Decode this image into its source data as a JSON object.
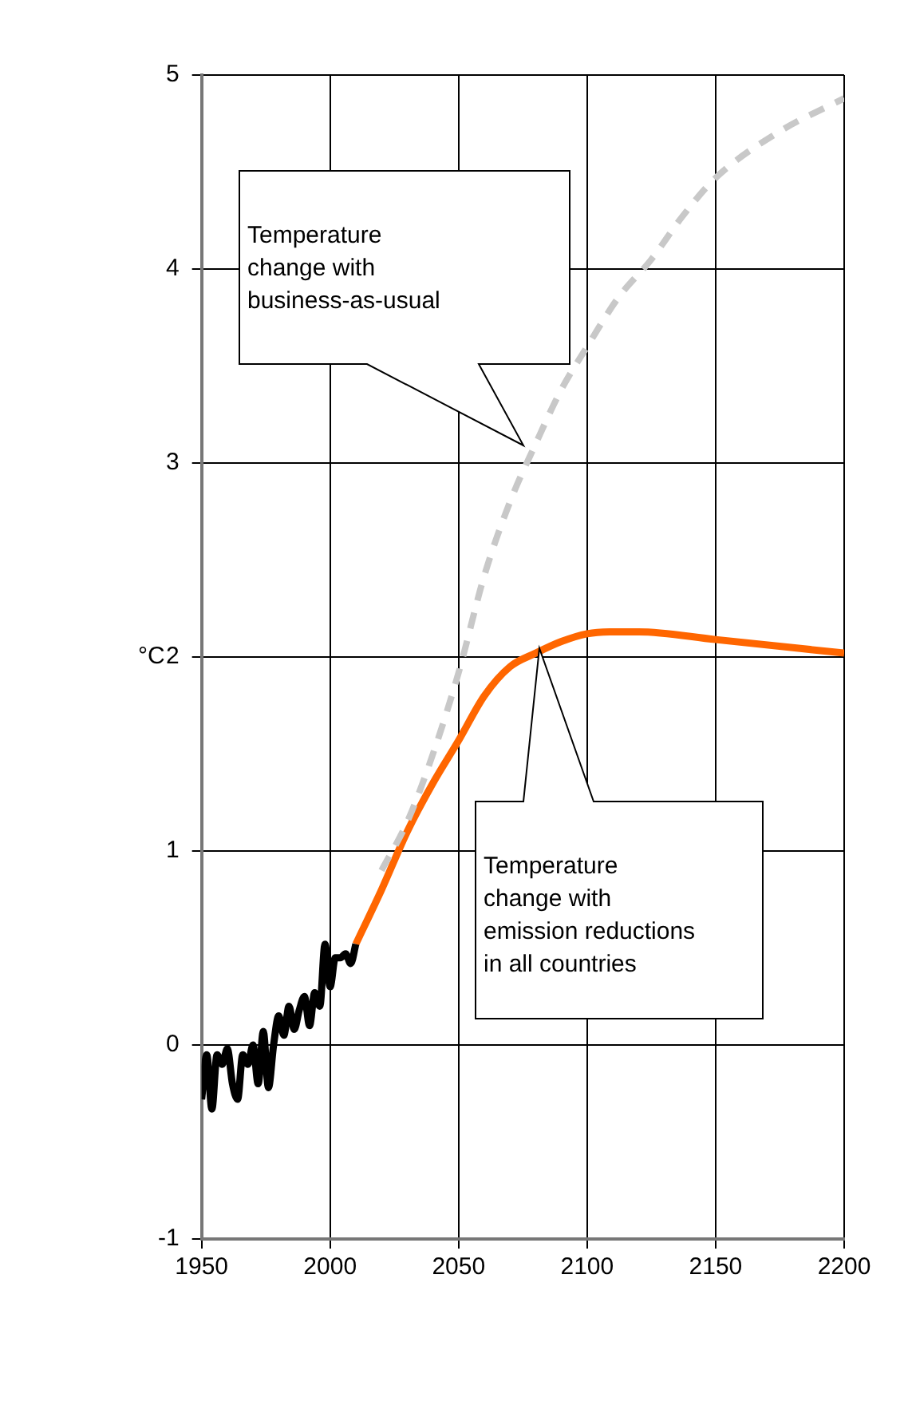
{
  "chart_data": {
    "type": "line",
    "ylabel": "°C",
    "xlim": [
      1950,
      2200
    ],
    "xticks": [
      1950,
      2000,
      2050,
      2100,
      2150,
      2200
    ],
    "ylim": [
      -1,
      5
    ],
    "yticks": [
      -1,
      0,
      1,
      2,
      3,
      4,
      5
    ],
    "grid": true,
    "legend": false,
    "marker": "none",
    "series": [
      {
        "color": "#000000",
        "line_style": "solid",
        "x": [
          1950,
          1952,
          1954,
          1956,
          1958,
          1960,
          1962,
          1964,
          1966,
          1968,
          1970,
          1972,
          1974,
          1976,
          1978,
          1980,
          1982,
          1984,
          1986,
          1988,
          1990,
          1992,
          1994,
          1996,
          1998,
          2000,
          2002,
          2004,
          2006,
          2008,
          2010
        ],
        "values": [
          -0.28,
          -0.05,
          -0.33,
          -0.05,
          -0.1,
          -0.02,
          -0.2,
          -0.28,
          -0.05,
          -0.1,
          0.0,
          -0.2,
          0.07,
          -0.22,
          0.0,
          0.15,
          0.05,
          0.2,
          0.08,
          0.18,
          0.25,
          0.1,
          0.27,
          0.2,
          0.52,
          0.3,
          0.45,
          0.45,
          0.47,
          0.42,
          0.52
        ]
      },
      {
        "color": "#c8c8c8",
        "line_style": "dashed",
        "x": [
          2020,
          2030,
          2040,
          2050,
          2060,
          2070,
          2080,
          2090,
          2100,
          2112,
          2125,
          2137,
          2150,
          2175,
          2200
        ],
        "values": [
          0.9,
          1.15,
          1.5,
          1.92,
          2.42,
          2.8,
          3.1,
          3.38,
          3.6,
          3.85,
          4.05,
          4.27,
          4.47,
          4.71,
          4.88
        ]
      },
      {
        "color": "#ff6600",
        "line_style": "solid",
        "x": [
          2010,
          2020,
          2030,
          2040,
          2050,
          2060,
          2070,
          2080,
          2090,
          2100,
          2110,
          2120,
          2150,
          2200
        ],
        "values": [
          0.52,
          0.8,
          1.1,
          1.35,
          1.57,
          1.8,
          1.95,
          2.02,
          2.08,
          2.12,
          2.13,
          2.13,
          2.09,
          2.02
        ]
      }
    ],
    "annotations": [
      "Temperature\nchange with\nbusiness-as-usual",
      "Temperature\nchange with\nemission reductions\nin all countries"
    ]
  }
}
